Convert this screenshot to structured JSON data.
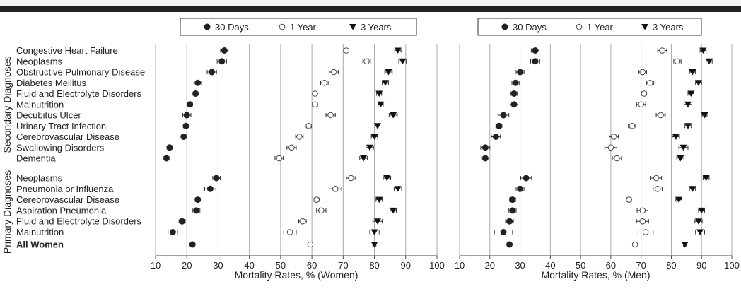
{
  "chart_data": {
    "type": "scatter",
    "group_labels": [
      "Secondary Diagnoses",
      "Primary Diagnoses"
    ],
    "secondary_rows": [
      "Congestive Heart Failure",
      "Neoplasms",
      "Obstructive Pulmonary Disease",
      "Diabetes Mellitus",
      "Fluid and Electrolyte Disorders",
      "Malnutrition",
      "Decubitus Ulcer",
      "Urinary Tract Infection",
      "Cerebrovascular Disease",
      "Swallowing Disorders",
      "Dementia"
    ],
    "primary_rows": [
      "Neoplasms",
      "Pneumonia or Influenza",
      "Cerebrovascular Disease",
      "Aspiration Pneumonia",
      "Fluid and Electrolyte Disorders",
      "Malnutrition"
    ],
    "total_row": "All Women",
    "legend": [
      "30 Days",
      "1 Year",
      "3 Years"
    ],
    "xlim": [
      10,
      100
    ],
    "xticks": [
      "10",
      "20",
      "30",
      "40",
      "50",
      "60",
      "70",
      "80",
      "90",
      "100"
    ],
    "panels": [
      {
        "xlabel": "Mortality Rates, % (Women)",
        "series": [
          {
            "marker": "filled-circle",
            "values": [
              32.0,
              31.2,
              28.0,
              23.5,
              22.8,
              21.0,
              20.0,
              19.7,
              19.0,
              14.5,
              13.5,
              29.5,
              27.5,
              23.5,
              23.0,
              18.5,
              15.5,
              21.8
            ],
            "err": [
              1.2,
              1.5,
              1.5,
              1.2,
              0.8,
              0.8,
              1.3,
              0.8,
              0.8,
              0.8,
              0.8,
              1.2,
              1.8,
              0.8,
              1.2,
              1.0,
              1.5,
              0.5
            ]
          },
          {
            "marker": "open-circle",
            "values": [
              71.0,
              77.5,
              67.0,
              64.0,
              61.0,
              61.0,
              66.0,
              59.0,
              56.0,
              53.5,
              49.5,
              72.5,
              67.5,
              61.5,
              63.0,
              57.0,
              53.0,
              59.5
            ],
            "err": [
              0.8,
              1.2,
              1.5,
              1.2,
              0.5,
              0.8,
              1.5,
              0.8,
              1.2,
              1.5,
              1.3,
              1.5,
              2.0,
              0.8,
              1.5,
              1.2,
              2.0,
              0.5
            ]
          },
          {
            "marker": "filled-triangle",
            "values": [
              87.5,
              89.0,
              84.5,
              83.5,
              81.5,
              82.0,
              86.0,
              81.0,
              80.0,
              78.5,
              76.5,
              84.0,
              87.5,
              81.5,
              86.0,
              81.0,
              80.0,
              80.0
            ],
            "err": [
              1.0,
              1.2,
              1.2,
              1.0,
              0.8,
              0.8,
              1.3,
              0.8,
              1.0,
              1.2,
              1.2,
              1.2,
              1.2,
              1.0,
              1.0,
              1.5,
              1.5,
              0.5
            ]
          }
        ]
      },
      {
        "xlabel": "Mortality Rates, % (Men)",
        "series": [
          {
            "marker": "filled-circle",
            "values": [
              35.0,
              35.0,
              30.0,
              28.5,
              28.0,
              28.0,
              24.5,
              23.0,
              22.0,
              18.5,
              18.5,
              32.0,
              30.0,
              27.5,
              27.5,
              26.5,
              24.5,
              26.5
            ],
            "err": [
              1.3,
              1.5,
              1.3,
              1.2,
              1.0,
              1.3,
              1.8,
              1.0,
              1.5,
              1.5,
              1.2,
              1.8,
              1.3,
              1.0,
              1.2,
              1.3,
              3.0,
              0.5
            ]
          },
          {
            "marker": "open-circle",
            "values": [
              77.0,
              82.0,
              70.5,
              73.0,
              71.0,
              70.0,
              76.5,
              67.0,
              61.0,
              60.0,
              62.0,
              75.0,
              75.5,
              66.0,
              70.5,
              70.5,
              71.5,
              68.0
            ],
            "err": [
              1.5,
              1.2,
              1.3,
              1.2,
              0.8,
              1.5,
              1.5,
              1.2,
              1.5,
              2.0,
              1.5,
              1.8,
              1.5,
              0.8,
              1.8,
              2.0,
              2.5,
              0.5
            ]
          },
          {
            "marker": "filled-triangle",
            "values": [
              90.5,
              92.5,
              87.0,
              89.0,
              86.5,
              85.5,
              91.0,
              85.5,
              81.5,
              84.0,
              83.0,
              91.5,
              87.0,
              82.5,
              90.0,
              89.0,
              89.5,
              84.5
            ],
            "err": [
              1.0,
              1.0,
              1.0,
              1.0,
              1.0,
              1.3,
              0.8,
              1.0,
              1.2,
              1.5,
              1.2,
              1.0,
              1.0,
              1.0,
              1.0,
              1.2,
              1.5,
              0.5
            ]
          }
        ]
      }
    ]
  }
}
